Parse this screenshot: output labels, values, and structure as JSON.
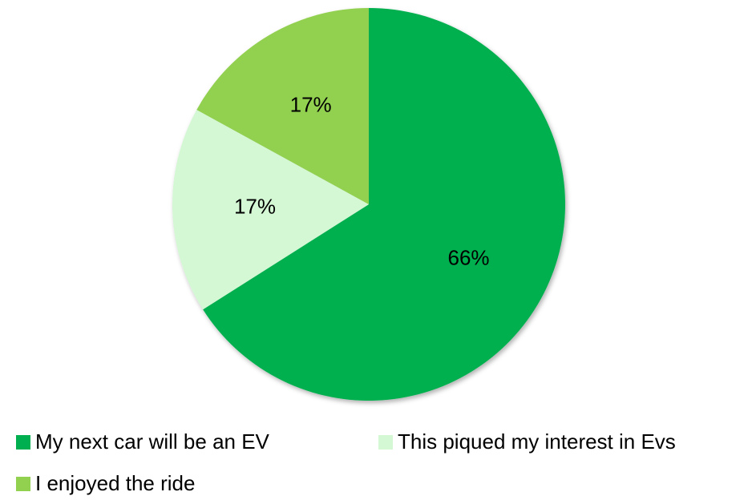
{
  "chart_data": {
    "type": "pie",
    "categories": [
      "My next car will be an EV",
      "This piqued my interest in Evs",
      "I enjoyed the ride"
    ],
    "values": [
      66,
      17,
      17
    ],
    "value_labels": [
      "66%",
      "17%",
      "17%"
    ],
    "colors": [
      "#00b050",
      "#d4f7d4",
      "#92d050"
    ]
  }
}
